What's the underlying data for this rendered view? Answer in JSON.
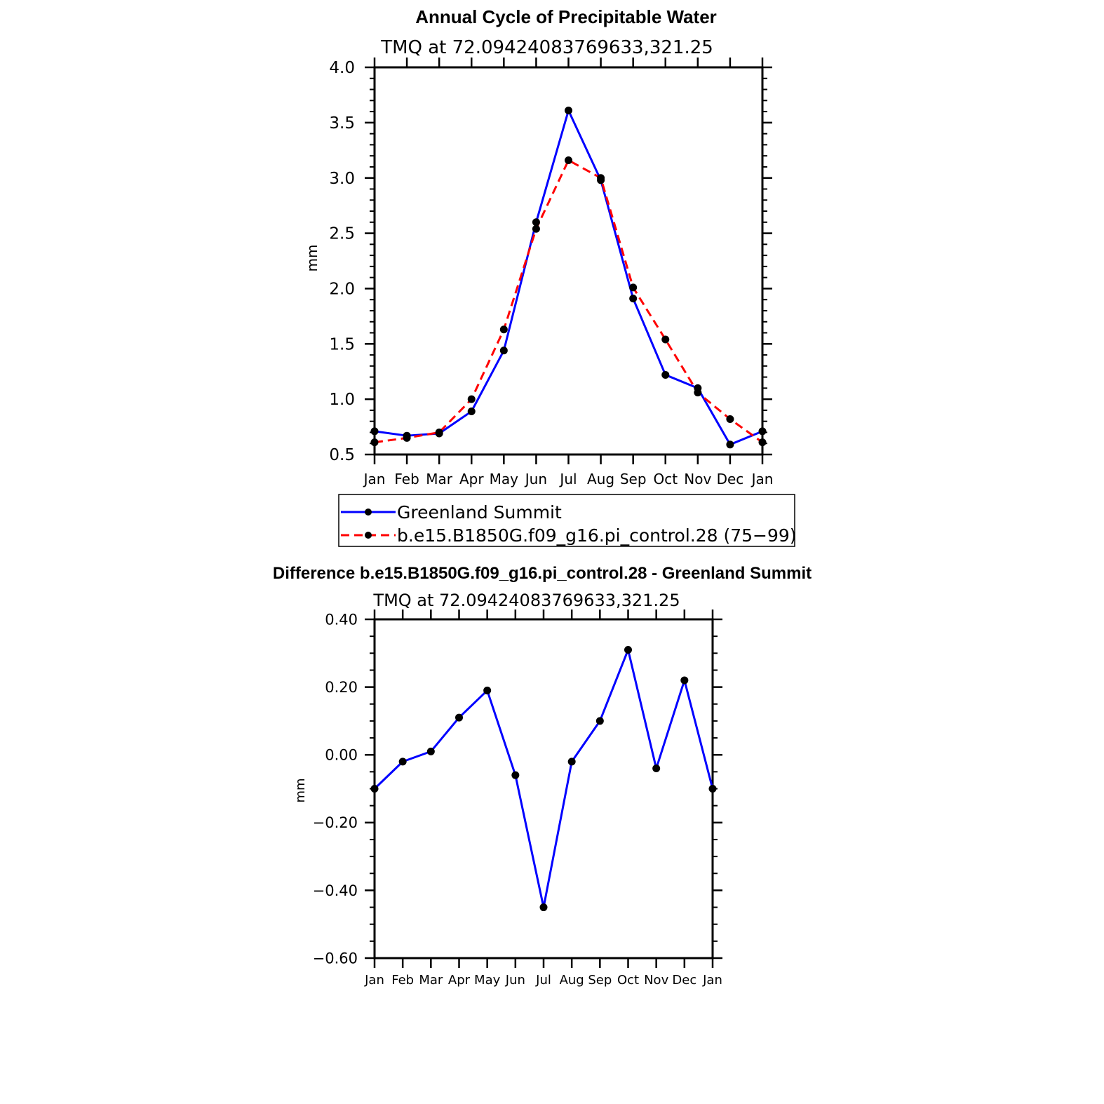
{
  "chart_data": [
    {
      "type": "line",
      "title": "Annual Cycle of Precipitable Water",
      "subtitle": "TMQ at 72.09424083769633,321.25",
      "ylabel": "mm",
      "xlabel": "",
      "categories": [
        "Jan",
        "Feb",
        "Mar",
        "Apr",
        "May",
        "Jun",
        "Jul",
        "Aug",
        "Sep",
        "Oct",
        "Nov",
        "Dec",
        "Jan"
      ],
      "ylim": [
        0.5,
        4.0
      ],
      "yticks": [
        "4.0",
        "3.5",
        "3.0",
        "2.5",
        "2.0",
        "1.5",
        "1.0",
        "0.5"
      ],
      "yticks_values": [
        4.0,
        3.5,
        3.0,
        2.5,
        2.0,
        1.5,
        1.0,
        0.5
      ],
      "grid": false,
      "legend": "bottom",
      "series": [
        {
          "name": "Greenland Summit",
          "color": "#0000ff",
          "dash": "solid",
          "values": [
            0.71,
            0.67,
            0.69,
            0.89,
            1.44,
            2.6,
            3.61,
            2.98,
            1.91,
            1.22,
            1.1,
            0.59,
            0.71
          ]
        },
        {
          "name": "b.e15.B1850G.f09_g16.pi_control.28 (75−99)",
          "color": "#ff0000",
          "dash": "dashed",
          "values": [
            0.61,
            0.65,
            0.7,
            1.0,
            1.63,
            2.54,
            3.16,
            3.0,
            2.01,
            1.54,
            1.06,
            0.82,
            0.61
          ]
        }
      ]
    },
    {
      "type": "line",
      "title": "Difference b.e15.B1850G.f09_g16.pi_control.28 - Greenland Summit",
      "subtitle": "TMQ at 72.09424083769633,321.25",
      "ylabel": "mm",
      "xlabel": "",
      "categories": [
        "Jan",
        "Feb",
        "Mar",
        "Apr",
        "May",
        "Jun",
        "Jul",
        "Aug",
        "Sep",
        "Oct",
        "Nov",
        "Dec",
        "Jan"
      ],
      "ylim": [
        -0.6,
        0.4
      ],
      "yticks": [
        "0.40",
        "0.20",
        "0.00",
        "−0.20",
        "−0.40",
        "−0.60"
      ],
      "yticks_values": [
        0.4,
        0.2,
        0.0,
        -0.2,
        -0.4,
        -0.6
      ],
      "grid": false,
      "series": [
        {
          "name": "",
          "color": "#0000ff",
          "dash": "solid",
          "values": [
            -0.1,
            -0.02,
            0.01,
            0.11,
            0.19,
            -0.06,
            -0.45,
            -0.02,
            0.1,
            0.31,
            -0.04,
            0.22,
            -0.1
          ]
        }
      ]
    }
  ]
}
